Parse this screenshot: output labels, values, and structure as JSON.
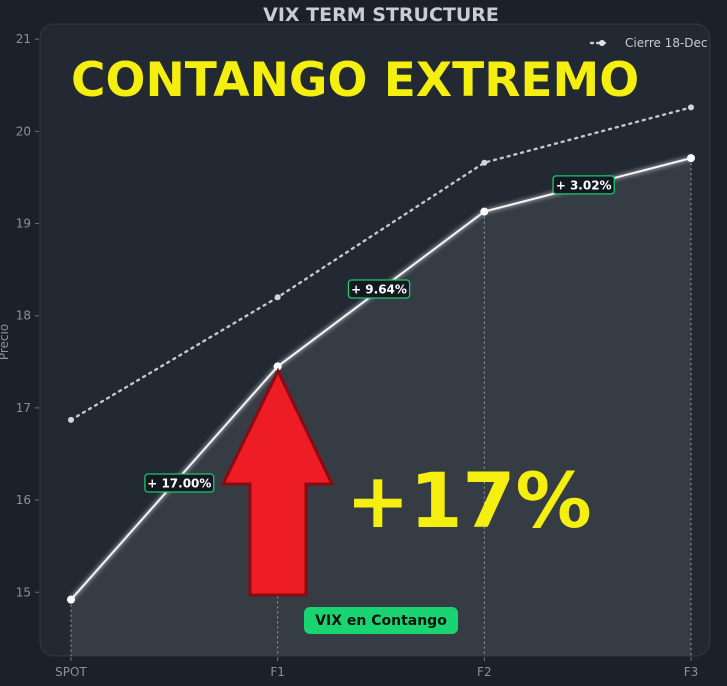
{
  "chart_data": {
    "type": "line",
    "title": "VIX TERM STRUCTURE",
    "xlabel": "",
    "ylabel": "Precio",
    "categories": [
      "SPOT",
      "F1",
      "F2",
      "F3"
    ],
    "ylim": [
      14.2,
      21.1
    ],
    "yticks": [
      15,
      16,
      17,
      18,
      19,
      20,
      21
    ],
    "series": [
      {
        "name": "",
        "style": "solid",
        "values": [
          14.92,
          17.45,
          19.13,
          19.71
        ]
      },
      {
        "name": "Cierre 18-Dec",
        "style": "dotted",
        "values": [
          16.87,
          18.2,
          19.66,
          20.26
        ]
      }
    ],
    "segment_labels": [
      "+ 17.00%",
      "+ 9.64%",
      "+ 3.02%"
    ],
    "legend_position": "top-right",
    "grid": false
  },
  "annotations": {
    "headline": "CONTANGO EXTREMO",
    "big_percent": "+17%",
    "badge": "VIX en Contango"
  },
  "colors": {
    "background": "#1b2029",
    "panel": "#232933",
    "line": "#f2f3f5",
    "headline": "#f5ef10",
    "arrow": "#ee1c25",
    "arrow_border": "#8b0a12",
    "label_border": "#19c86b",
    "badge": "#19d471"
  }
}
